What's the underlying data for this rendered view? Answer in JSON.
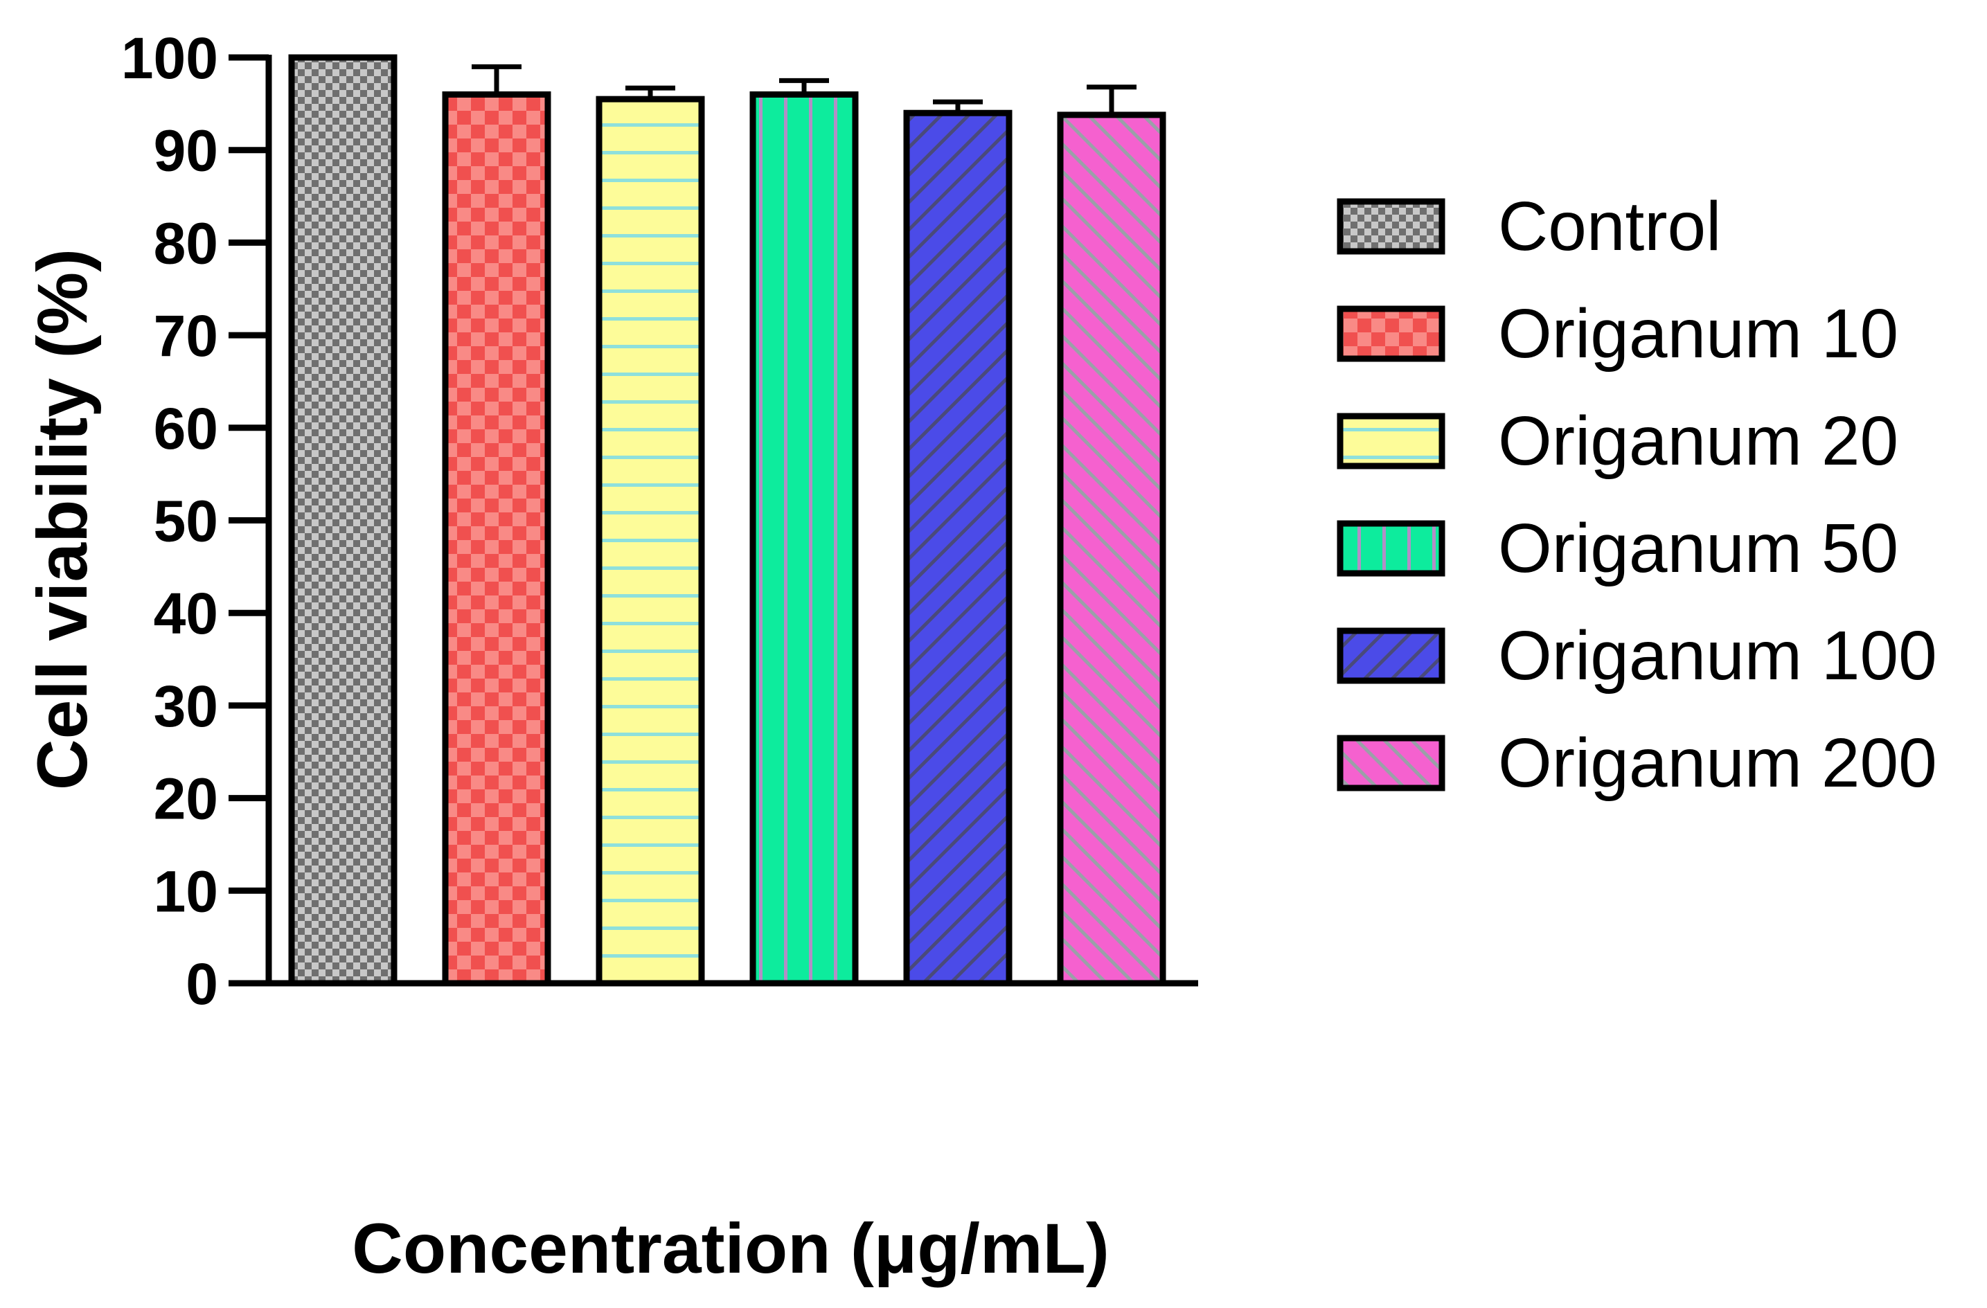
{
  "chart_data": {
    "type": "bar",
    "title": "",
    "xlabel": "Concentration (μg/mL)",
    "ylabel": "Cell viability (%)",
    "ylim": [
      0,
      100
    ],
    "yticks": [
      "0",
      "10",
      "20",
      "30",
      "40",
      "50",
      "60",
      "70",
      "80",
      "90",
      "100"
    ],
    "grid": false,
    "legend_position": "right",
    "categories": [
      "Control",
      "Origanum 10",
      "Origanum 20",
      "Origanum 50",
      "Origanum 100",
      "Origanum 200"
    ],
    "values": [
      100,
      96,
      95.5,
      96,
      94,
      93.8
    ],
    "errors": [
      0,
      3,
      1.2,
      1.5,
      1.2,
      3
    ],
    "series_colors": [
      "#9a9a9a",
      "#f0504f",
      "#fdfc99",
      "#0dec9d",
      "#4b4be8",
      "#f561cf"
    ],
    "patterns": [
      "checker-fine",
      "checker-large",
      "horizontal-lines",
      "vertical-lines",
      "diagonal-up",
      "diagonal-down"
    ]
  }
}
